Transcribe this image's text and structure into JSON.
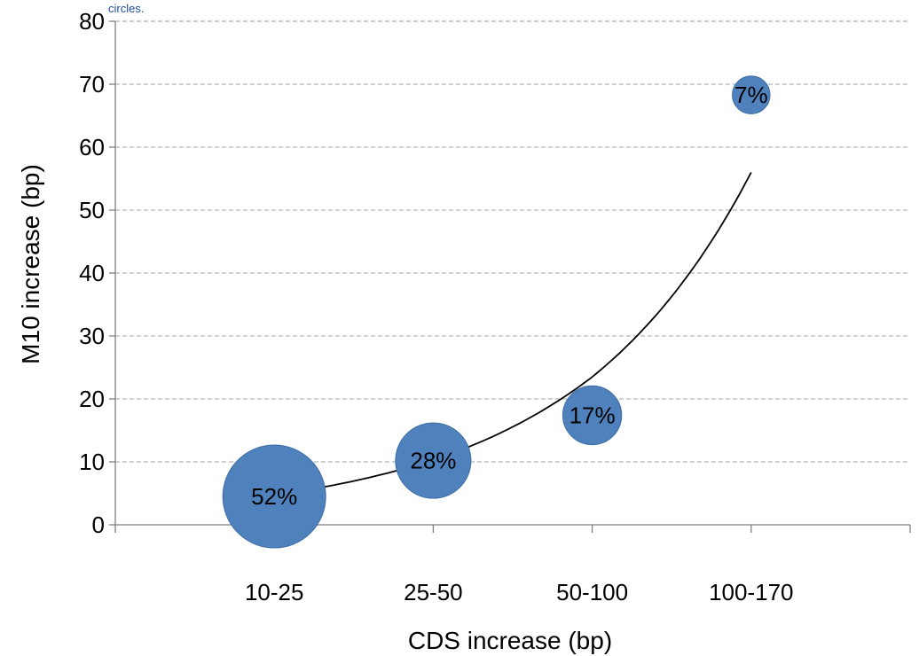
{
  "chart_data": {
    "type": "bubble",
    "note": "circles.",
    "xlabel": "CDS increase (bp)",
    "ylabel": "M10 increase (bp)",
    "categories": [
      "10-25",
      "25-50",
      "50-100",
      "100-170"
    ],
    "ylim": [
      0,
      80
    ],
    "yticks": [
      0,
      10,
      20,
      30,
      40,
      50,
      60,
      70,
      80
    ],
    "grid": true,
    "bubbles": [
      {
        "category": "10-25",
        "y": 4.5,
        "share": 52,
        "label": "52%"
      },
      {
        "category": "25-50",
        "y": 10.2,
        "share": 28,
        "label": "28%"
      },
      {
        "category": "50-100",
        "y": 17.4,
        "share": 17,
        "label": "17%"
      },
      {
        "category": "100-170",
        "y": 68.3,
        "share": 7,
        "label": "7%"
      }
    ],
    "trendline": {
      "type": "exponential",
      "points": [
        [
          0,
          4.7
        ],
        [
          1,
          10.3
        ],
        [
          2,
          23.5
        ],
        [
          3,
          56
        ]
      ]
    },
    "colors": {
      "bubble": "#4f81bd",
      "bubble_edge": "#3f6ea4",
      "trendline": "#000000",
      "grid": "#b3b3b3",
      "axis": "#7f7f7f",
      "note": "#1f4e9d"
    }
  }
}
